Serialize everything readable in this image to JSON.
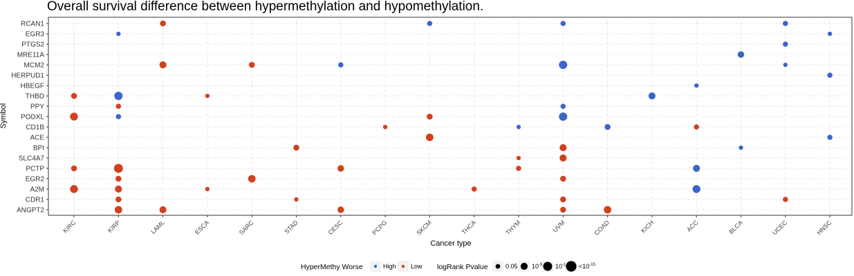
{
  "chart_data": {
    "type": "scatter",
    "title": "Overall survival difference between hypermethylation and hypomethylation.",
    "xlabel": "Cancer type",
    "ylabel": "Symbol",
    "x_categories": [
      "KIRC",
      "KIRP",
      "LAML",
      "ESCA",
      "SARC",
      "STAD",
      "CESC",
      "PCPG",
      "SKCM",
      "THCA",
      "THYM",
      "UVM",
      "COAD",
      "KICH",
      "ACC",
      "BLCA",
      "UCEC",
      "HNSC"
    ],
    "y_categories": [
      "RCAN1",
      "EGR3",
      "PTGS2",
      "MRE11A",
      "MCM2",
      "HERPUD1",
      "HBEGF",
      "THBD",
      "PPY",
      "PODXL",
      "CD1B",
      "ACE",
      "BPI",
      "SLC4A7",
      "PCTP",
      "EGR2",
      "A2M",
      "CDR1",
      "ANGPT2"
    ],
    "grid": true,
    "colors": {
      "High": "#3b65c8",
      "Low": "#d2401d"
    },
    "points": [
      {
        "x": "LAML",
        "y": "RCAN1",
        "group": "Low",
        "p": 3
      },
      {
        "x": "SKCM",
        "y": "RCAN1",
        "group": "High",
        "p": 2
      },
      {
        "x": "UVM",
        "y": "RCAN1",
        "group": "High",
        "p": 2
      },
      {
        "x": "UCEC",
        "y": "RCAN1",
        "group": "High",
        "p": 2
      },
      {
        "x": "KIRP",
        "y": "EGR3",
        "group": "High",
        "p": 1
      },
      {
        "x": "HNSC",
        "y": "EGR3",
        "group": "High",
        "p": 1
      },
      {
        "x": "UCEC",
        "y": "PTGS2",
        "group": "High",
        "p": 2
      },
      {
        "x": "BLCA",
        "y": "MRE11A",
        "group": "High",
        "p": 4
      },
      {
        "x": "LAML",
        "y": "MCM2",
        "group": "Low",
        "p": 5
      },
      {
        "x": "SARC",
        "y": "MCM2",
        "group": "Low",
        "p": 3
      },
      {
        "x": "CESC",
        "y": "MCM2",
        "group": "High",
        "p": 2
      },
      {
        "x": "UVM",
        "y": "MCM2",
        "group": "High",
        "p": 8
      },
      {
        "x": "UCEC",
        "y": "MCM2",
        "group": "High",
        "p": 1
      },
      {
        "x": "HNSC",
        "y": "HERPUD1",
        "group": "High",
        "p": 2
      },
      {
        "x": "ACC",
        "y": "HBEGF",
        "group": "High",
        "p": 1
      },
      {
        "x": "KIRC",
        "y": "THBD",
        "group": "Low",
        "p": 3
      },
      {
        "x": "KIRP",
        "y": "THBD",
        "group": "High",
        "p": 8
      },
      {
        "x": "ESCA",
        "y": "THBD",
        "group": "Low",
        "p": 1
      },
      {
        "x": "KICH",
        "y": "THBD",
        "group": "High",
        "p": 5
      },
      {
        "x": "KIRP",
        "y": "PPY",
        "group": "Low",
        "p": 2
      },
      {
        "x": "UVM",
        "y": "PPY",
        "group": "High",
        "p": 2
      },
      {
        "x": "KIRC",
        "y": "PODXL",
        "group": "Low",
        "p": 7
      },
      {
        "x": "KIRP",
        "y": "PODXL",
        "group": "High",
        "p": 2
      },
      {
        "x": "SKCM",
        "y": "PODXL",
        "group": "Low",
        "p": 3
      },
      {
        "x": "UVM",
        "y": "PODXL",
        "group": "High",
        "p": 8
      },
      {
        "x": "PCPG",
        "y": "CD1B",
        "group": "Low",
        "p": 1
      },
      {
        "x": "THYM",
        "y": "CD1B",
        "group": "High",
        "p": 1
      },
      {
        "x": "COAD",
        "y": "CD1B",
        "group": "High",
        "p": 3
      },
      {
        "x": "ACC",
        "y": "CD1B",
        "group": "Low",
        "p": 2
      },
      {
        "x": "SKCM",
        "y": "ACE",
        "group": "Low",
        "p": 6
      },
      {
        "x": "HNSC",
        "y": "ACE",
        "group": "High",
        "p": 2
      },
      {
        "x": "STAD",
        "y": "BPI",
        "group": "Low",
        "p": 3
      },
      {
        "x": "UVM",
        "y": "BPI",
        "group": "Low",
        "p": 5
      },
      {
        "x": "BLCA",
        "y": "BPI",
        "group": "High",
        "p": 1
      },
      {
        "x": "THYM",
        "y": "SLC4A7",
        "group": "Low",
        "p": 1
      },
      {
        "x": "UVM",
        "y": "SLC4A7",
        "group": "Low",
        "p": 5
      },
      {
        "x": "KIRC",
        "y": "PCTP",
        "group": "Low",
        "p": 3
      },
      {
        "x": "KIRP",
        "y": "PCTP",
        "group": "Low",
        "p": 10
      },
      {
        "x": "CESC",
        "y": "PCTP",
        "group": "Low",
        "p": 4
      },
      {
        "x": "THYM",
        "y": "PCTP",
        "group": "Low",
        "p": 2
      },
      {
        "x": "ACC",
        "y": "PCTP",
        "group": "High",
        "p": 5
      },
      {
        "x": "KIRP",
        "y": "EGR2",
        "group": "Low",
        "p": 3
      },
      {
        "x": "SARC",
        "y": "EGR2",
        "group": "Low",
        "p": 6
      },
      {
        "x": "UVM",
        "y": "EGR2",
        "group": "Low",
        "p": 3
      },
      {
        "x": "KIRC",
        "y": "A2M",
        "group": "Low",
        "p": 7
      },
      {
        "x": "KIRP",
        "y": "A2M",
        "group": "Low",
        "p": 5
      },
      {
        "x": "ESCA",
        "y": "A2M",
        "group": "Low",
        "p": 1
      },
      {
        "x": "THCA",
        "y": "A2M",
        "group": "Low",
        "p": 2
      },
      {
        "x": "ACC",
        "y": "A2M",
        "group": "High",
        "p": 7
      },
      {
        "x": "KIRP",
        "y": "CDR1",
        "group": "Low",
        "p": 3
      },
      {
        "x": "STAD",
        "y": "CDR1",
        "group": "Low",
        "p": 1
      },
      {
        "x": "UVM",
        "y": "CDR1",
        "group": "Low",
        "p": 3
      },
      {
        "x": "UCEC",
        "y": "CDR1",
        "group": "Low",
        "p": 2
      },
      {
        "x": "KIRP",
        "y": "ANGPT2",
        "group": "Low",
        "p": 6
      },
      {
        "x": "LAML",
        "y": "ANGPT2",
        "group": "Low",
        "p": 5
      },
      {
        "x": "CESC",
        "y": "ANGPT2",
        "group": "Low",
        "p": 4
      },
      {
        "x": "UVM",
        "y": "ANGPT2",
        "group": "Low",
        "p": 3
      },
      {
        "x": "COAD",
        "y": "ANGPT2",
        "group": "Low",
        "p": 6
      }
    ],
    "legend": {
      "position": "bottom",
      "color_title": "HyperMethy Worse",
      "color_items": [
        "High",
        "Low"
      ],
      "size_title": "logRank Pvalue",
      "size_items": [
        {
          "label": "0.05",
          "p": 1.3
        },
        {
          "label": "10",
          "sup": "-5",
          "p": 5
        },
        {
          "label": "10",
          "sup": "-10",
          "p": 10
        },
        {
          "label": "<10",
          "sup": "-15",
          "p": 15
        }
      ]
    }
  }
}
